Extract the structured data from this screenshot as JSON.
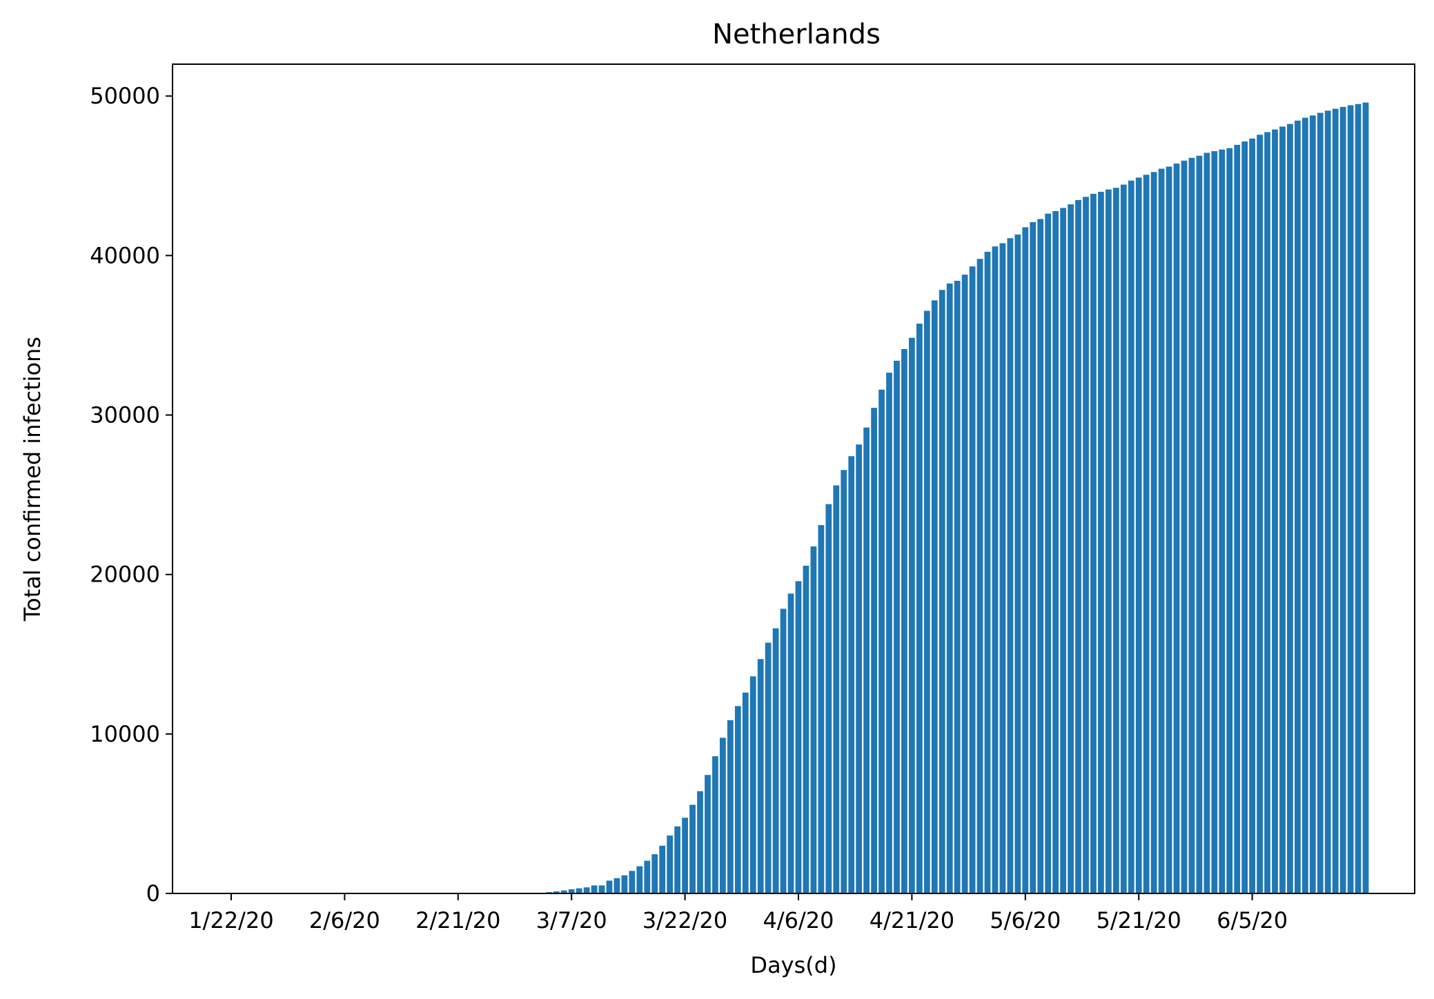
{
  "chart_data": {
    "type": "bar",
    "title": "Netherlands",
    "xlabel": "Days(d)",
    "ylabel": "Total confirmed infections",
    "x_start": "1/22/20",
    "x_ticks": [
      "1/22/20",
      "2/6/20",
      "2/21/20",
      "3/7/20",
      "3/22/20",
      "4/6/20",
      "4/21/20",
      "5/6/20",
      "5/21/20",
      "6/5/20"
    ],
    "y_ticks": [
      0,
      10000,
      20000,
      30000,
      40000,
      50000
    ],
    "ylim": [
      0,
      52000
    ],
    "color": "#1f77b4",
    "grid": false,
    "values": [
      0,
      0,
      0,
      0,
      0,
      0,
      0,
      0,
      0,
      0,
      0,
      0,
      0,
      0,
      0,
      0,
      0,
      0,
      0,
      0,
      0,
      0,
      0,
      0,
      0,
      0,
      0,
      0,
      0,
      0,
      0,
      0,
      0,
      0,
      0,
      0,
      1,
      6,
      10,
      18,
      24,
      38,
      82,
      128,
      188,
      265,
      321,
      382,
      503,
      503,
      804,
      959,
      1136,
      1413,
      1705,
      2051,
      2460,
      2994,
      3631,
      4204,
      4749,
      5560,
      6412,
      7431,
      8603,
      9762,
      10866,
      11750,
      12595,
      13614,
      14697,
      15723,
      16627,
      17851,
      18803,
      19580,
      20549,
      21762,
      23097,
      24413,
      25587,
      26551,
      27419,
      28153,
      29214,
      30449,
      31589,
      32655,
      33405,
      34134,
      34842,
      35729,
      36535,
      37190,
      37845,
      38245,
      38416,
      38802,
      39316,
      39791,
      40236,
      40571,
      40770,
      41087,
      41319,
      41774,
      42093,
      42292,
      42627,
      42788,
      42984,
      43211,
      43481,
      43681,
      43870,
      43995,
      44141,
      44249,
      44447,
      44700,
      44888,
      45064,
      45236,
      45445,
      45578,
      45768,
      45950,
      46126,
      46257,
      46442,
      46545,
      46647,
      46733,
      46942,
      47152,
      47335,
      47574,
      47739,
      47903,
      48087,
      48251,
      48461,
      48640,
      48783,
      48948,
      49087,
      49204,
      49319,
      49426,
      49502,
      49593
    ]
  }
}
